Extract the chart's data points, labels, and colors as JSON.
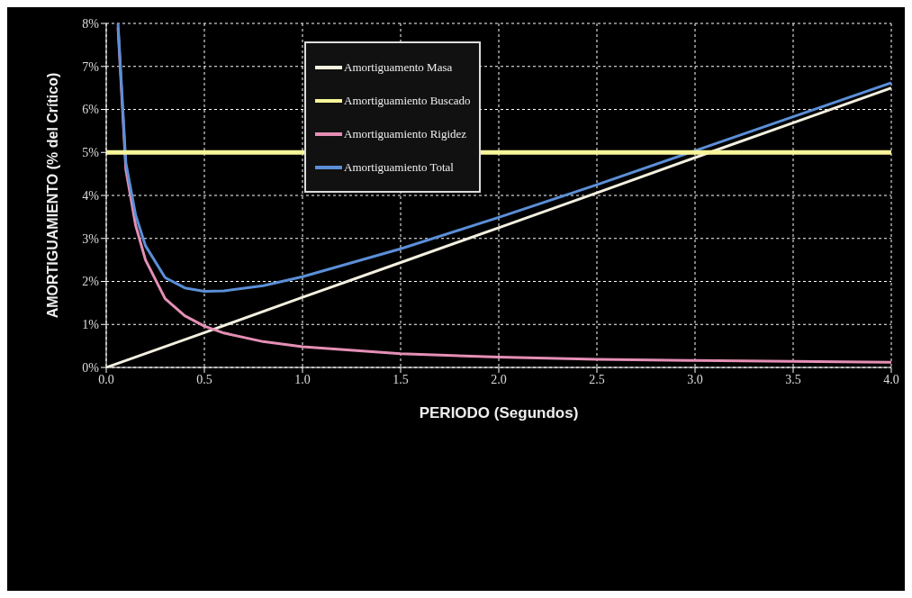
{
  "chart_data": {
    "type": "line",
    "xlabel": "PERIODO (Segundos)",
    "ylabel": "AMORTIGUAMIENTO (% del Crítico)",
    "xlim": [
      0,
      4
    ],
    "ylim": [
      0,
      8
    ],
    "xticks": [
      {
        "value": 0,
        "label": "0.0"
      },
      {
        "value": 0.5,
        "label": "0.5"
      },
      {
        "value": 1,
        "label": "1.0"
      },
      {
        "value": 1.5,
        "label": "1.5"
      },
      {
        "value": 2,
        "label": "2.0"
      },
      {
        "value": 2.5,
        "label": "2.5"
      },
      {
        "value": 3,
        "label": "3.0"
      },
      {
        "value": 3.5,
        "label": "3.5"
      },
      {
        "value": 4,
        "label": "4.0"
      }
    ],
    "yticks": [
      {
        "value": 0,
        "label": "0%"
      },
      {
        "value": 1,
        "label": "1%"
      },
      {
        "value": 2,
        "label": "2%"
      },
      {
        "value": 3,
        "label": "3%"
      },
      {
        "value": 4,
        "label": "4%"
      },
      {
        "value": 5,
        "label": "5%"
      },
      {
        "value": 6,
        "label": "6%"
      },
      {
        "value": 7,
        "label": "7%"
      },
      {
        "value": 8,
        "label": "8%"
      }
    ],
    "grid": true,
    "legend": "top",
    "marker": "none",
    "line_style": "solid",
    "series": [
      {
        "name": "Amortiguamento Masa",
        "color": "#f4f0e0",
        "x": [
          0,
          0.5,
          1,
          1.5,
          2,
          2.5,
          3,
          3.5,
          4
        ],
        "values": [
          0,
          0.81,
          1.63,
          2.44,
          3.25,
          4.06,
          4.88,
          5.69,
          6.5
        ]
      },
      {
        "name": "Amortiguamiento Rigidez",
        "color": "#e58fb5",
        "x": [
          0.06,
          0.1,
          0.15,
          0.2,
          0.3,
          0.4,
          0.5,
          0.6,
          0.8,
          1,
          1.5,
          2,
          2.5,
          3,
          3.5,
          4
        ],
        "values": [
          7.9,
          4.6,
          3.3,
          2.5,
          1.6,
          1.2,
          0.96,
          0.8,
          0.6,
          0.48,
          0.32,
          0.24,
          0.19,
          0.16,
          0.14,
          0.12
        ]
      },
      {
        "name": "Amortiguamiento Total",
        "color": "#5b8fd8",
        "x": [
          0.06,
          0.1,
          0.15,
          0.2,
          0.3,
          0.4,
          0.5,
          0.6,
          0.8,
          1,
          1.5,
          2,
          2.5,
          3,
          3.5,
          4
        ],
        "values": [
          8,
          4.76,
          3.54,
          2.83,
          2.09,
          1.85,
          1.77,
          1.78,
          1.9,
          2.11,
          2.76,
          3.49,
          4.25,
          5.04,
          5.83,
          6.62
        ]
      },
      {
        "name": "Amortiguamiento Buscado",
        "color": "#f8f59a",
        "x": [
          0,
          4
        ],
        "values": [
          5,
          5
        ]
      }
    ]
  }
}
